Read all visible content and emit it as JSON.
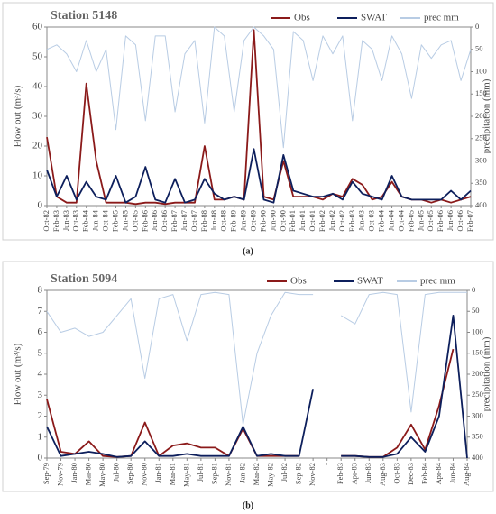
{
  "chart_data": [
    {
      "type": "line",
      "title": "Station 5148",
      "caption": "(a)",
      "ylabel": "Flow out (m³/s)",
      "y2label": "precipitation (mm)",
      "categories": [
        "Oct-82",
        "Feb-83",
        "Jun-83",
        "Oct-83",
        "Feb-84",
        "Jun-84",
        "Oct-84",
        "Feb-85",
        "Jun-85",
        "Oct-85",
        "Feb-86",
        "Jun-86",
        "Oct-86",
        "Feb-87",
        "Jun-87",
        "Oct-87",
        "Feb-88",
        "Jun-88",
        "Oct-88",
        "Feb-89",
        "Jun-89",
        "Oct-89",
        "Feb-90",
        "Jun-90",
        "Oct-90",
        "Feb-01",
        "Jun-01",
        "Oct-01",
        "Feb-02",
        "Jun-02",
        "Oct-02",
        "Feb-03",
        "Jun-03",
        "Oct-03",
        "Feb-04",
        "Jun-04",
        "Oct-04",
        "Feb-05",
        "Jun-05",
        "Oct-05",
        "Feb-06",
        "Jun-06",
        "Oct-06",
        "Feb-07"
      ],
      "series": [
        {
          "name": "prec mm",
          "color": "#b8cce4",
          "axis": "y2",
          "values": [
            50,
            40,
            60,
            100,
            30,
            100,
            50,
            230,
            20,
            40,
            210,
            20,
            20,
            190,
            60,
            30,
            215,
            0,
            20,
            190,
            30,
            0,
            20,
            50,
            270,
            10,
            30,
            120,
            20,
            60,
            20,
            210,
            30,
            50,
            120,
            20,
            60,
            160,
            40,
            70,
            40,
            30,
            120,
            50
          ]
        },
        {
          "name": "Obs",
          "color": "#8b1a1a",
          "values": [
            23,
            3,
            1,
            1,
            41,
            15,
            1,
            1,
            1,
            0.5,
            1,
            1,
            0.5,
            1,
            1,
            1,
            20,
            2,
            2,
            3,
            2,
            59,
            3,
            2,
            15,
            3,
            3,
            3,
            2,
            4,
            3,
            9,
            7,
            2,
            3,
            8,
            3,
            2,
            2,
            1,
            2,
            1,
            2,
            3
          ]
        },
        {
          "name": "SWAT",
          "color": "#0d1f5c",
          "values": [
            12,
            3,
            10,
            2,
            8,
            3,
            2,
            10,
            1,
            3,
            13,
            2,
            1,
            9,
            1,
            2,
            9,
            4,
            2,
            3,
            2,
            19,
            2,
            1,
            17,
            5,
            4,
            3,
            3,
            4,
            2,
            8,
            4,
            3,
            2,
            10,
            3,
            2,
            2,
            2,
            2,
            5,
            2,
            5
          ]
        }
      ],
      "ylim": [
        0,
        60
      ],
      "yticks": [
        0,
        10,
        20,
        30,
        40,
        50,
        60
      ],
      "y2lim": [
        0,
        400
      ],
      "y2ticks": [
        0,
        50,
        100,
        150,
        200,
        250,
        300,
        350,
        400
      ],
      "y2_inverted": true,
      "legend": "top-right"
    },
    {
      "type": "line",
      "title": "Station 5094",
      "caption": "(b)",
      "ylabel": "Flow out (m³/s)",
      "y2label": "precipitation (mm)",
      "categories": [
        "Sep-79",
        "Nov-79",
        "Jan-80",
        "Mar-80",
        "May-80",
        "Jul-80",
        "Sep-80",
        "Nov-80",
        "Jan-81",
        "Mar-81",
        "May-81",
        "Jul-81",
        "Sep-81",
        "Nov-81",
        "Jan-82",
        "Mar-82",
        "May-82",
        "Jul-82",
        "Sep-82",
        "Nov-82",
        "-",
        "Feb-83",
        "Apr-83",
        "Jun-83",
        "Aug-83",
        "Oct-83",
        "Dec-83",
        "Feb-84",
        "Apr-84",
        "Jun-84",
        "Aug-84"
      ],
      "series": [
        {
          "name": "prec mm",
          "color": "#b8cce4",
          "axis": "y2",
          "values": [
            50,
            100,
            90,
            110,
            100,
            60,
            20,
            210,
            20,
            10,
            120,
            10,
            5,
            10,
            320,
            150,
            60,
            5,
            10,
            10,
            null,
            60,
            80,
            10,
            5,
            10,
            290,
            10,
            5,
            5,
            5
          ]
        },
        {
          "name": "Obs",
          "color": "#8b1a1a",
          "values": [
            2.8,
            0.3,
            0.2,
            0.8,
            0.1,
            0.05,
            0.1,
            1.7,
            0.1,
            0.6,
            0.7,
            0.5,
            0.5,
            0.1,
            1.4,
            0.1,
            0.1,
            0.1,
            0.1,
            null,
            null,
            0.1,
            0.1,
            0.05,
            0.05,
            0.5,
            1.6,
            0.4,
            2.5,
            5.2,
            null
          ]
        },
        {
          "name": "SWAT",
          "color": "#0d1f5c",
          "values": [
            1.5,
            0.1,
            0.2,
            0.3,
            0.2,
            0.05,
            0.1,
            0.8,
            0.1,
            0.1,
            0.2,
            0.1,
            0.1,
            0.1,
            1.5,
            0.1,
            0.2,
            0.1,
            0.1,
            3.3,
            null,
            0.1,
            0.1,
            0.05,
            0.05,
            0.2,
            1.0,
            0.3,
            2.0,
            6.8,
            0
          ]
        }
      ],
      "ylim": [
        0,
        8
      ],
      "yticks": [
        0,
        1,
        2,
        3,
        4,
        5,
        6,
        7,
        8
      ],
      "y2lim": [
        0,
        400
      ],
      "y2ticks": [
        0,
        50,
        100,
        150,
        200,
        250,
        300,
        350,
        400
      ],
      "y2_inverted": true,
      "legend": "top-right"
    }
  ]
}
